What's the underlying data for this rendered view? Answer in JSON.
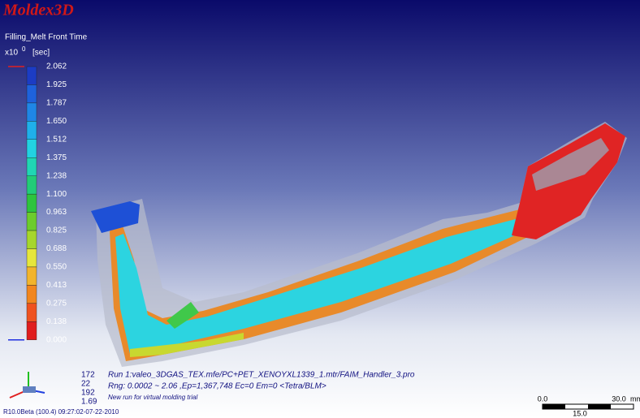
{
  "app": {
    "logo": "Moldex3D",
    "result_title": "Filling_Melt Front Time",
    "unit_base": "x10",
    "unit_exp": "0",
    "unit": "[sec]"
  },
  "legend": {
    "labels": [
      "2.062",
      "1.925",
      "1.787",
      "1.650",
      "1.512",
      "1.375",
      "1.238",
      "1.100",
      "0.963",
      "0.825",
      "0.688",
      "0.550",
      "0.413",
      "0.275",
      "0.138",
      "0.000"
    ],
    "colors": [
      "#1c3cc4",
      "#1e62dc",
      "#1f86e6",
      "#1fb0ea",
      "#22d2e2",
      "#20d6b4",
      "#22cc78",
      "#2ec43e",
      "#6ccc2c",
      "#a6d62c",
      "#e6e63c",
      "#f2b42c",
      "#f2861e",
      "#ef5220",
      "#e01e1e"
    ]
  },
  "info": {
    "numbers": [
      "172",
      "22",
      "192",
      "1.69"
    ],
    "lines": [
      "Run 1:valeo_3DGAS_TEX.mfe/PC+PET_XENOYXL1339_1.mtr/FAIM_Handler_3.pro",
      "Rng: 0.0002 ~ 2.06  ,Ep=1,367,748 Ec=0 Em=0  <Tetra/BLM>",
      "New run for virtual molding trial"
    ]
  },
  "scale": {
    "start": "0.0",
    "end": "30.0",
    "unit": "mm",
    "mid": "15.0"
  },
  "version": "R10.0Beta (100.4) 09:27:02-07-22-2010"
}
